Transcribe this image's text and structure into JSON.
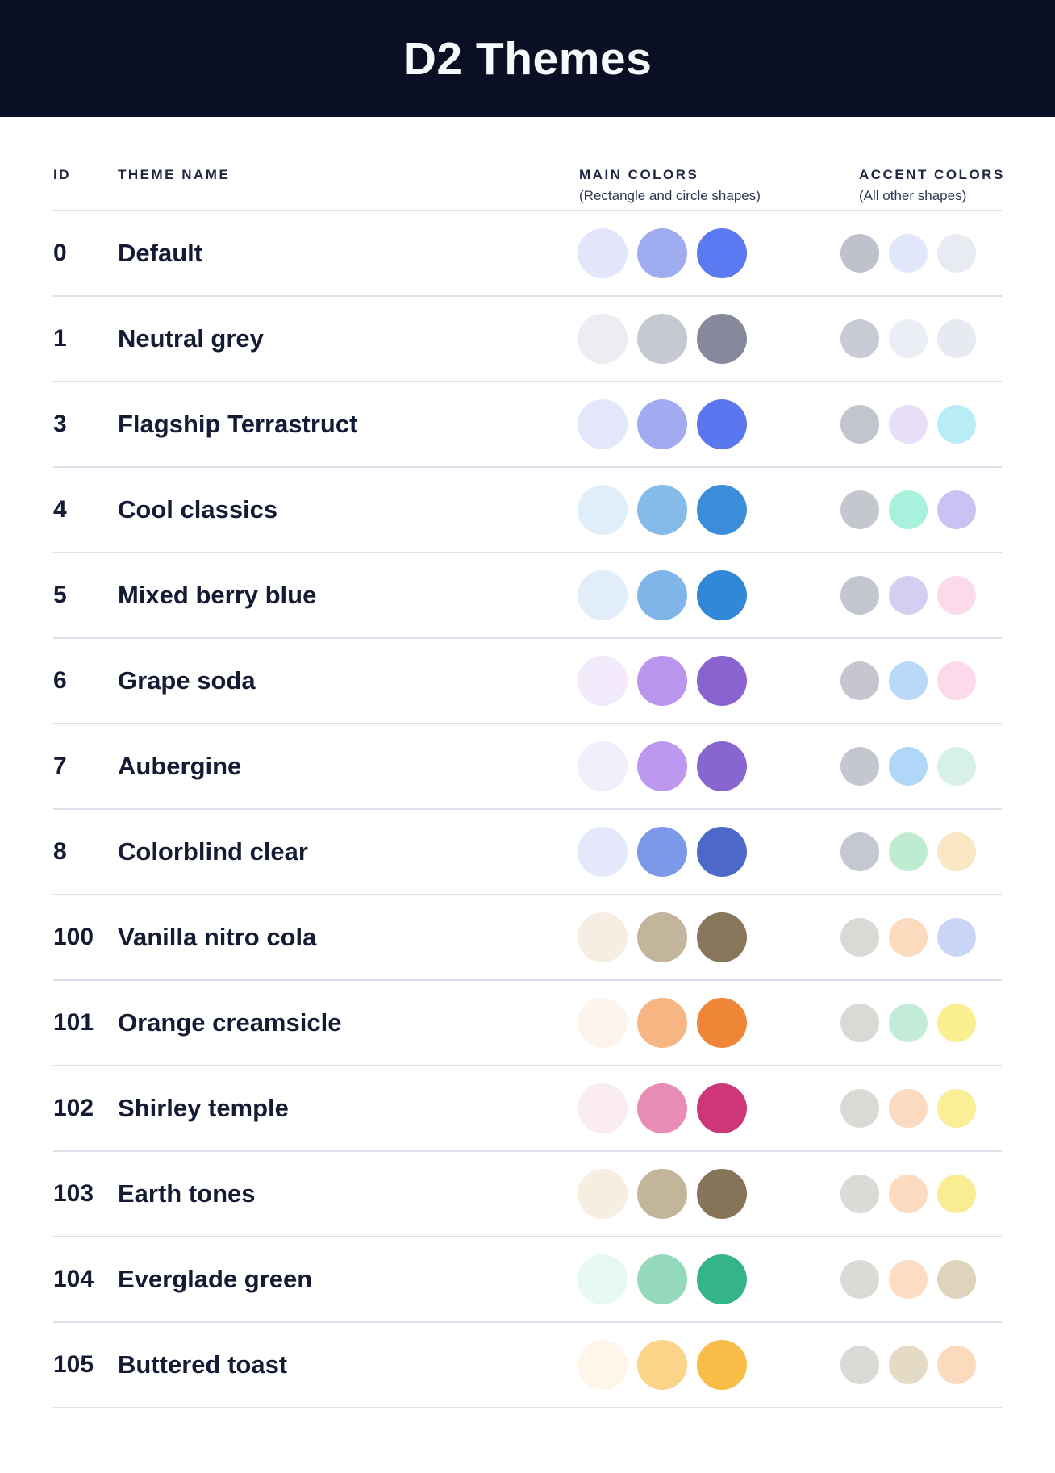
{
  "page": {
    "title": "D2 Themes"
  },
  "colors": {
    "header_bg": "#0A0F23",
    "title_text": "#F7F8FC",
    "body_text": "#151B34",
    "separator": "#DDDEE9"
  },
  "table": {
    "columns": {
      "id_label": "ID",
      "theme_name_label": "THEME NAME",
      "main_colors_label": "MAIN COLORS",
      "main_colors_sub": "(Rectangle and circle shapes)",
      "accent_colors_label": "ACCENT COLORS",
      "accent_colors_sub": "(All other shapes)"
    },
    "rows": [
      {
        "id": "0",
        "name": "Default",
        "main": [
          "#E3E6FB",
          "#A0ACF0",
          "#5B79F0"
        ],
        "accent": [
          "#BFC2CD",
          "#E2E6FA",
          "#E9EBF2"
        ]
      },
      {
        "id": "1",
        "name": "Neutral grey",
        "main": [
          "#EBEDF3",
          "#C6C9D1",
          "#85899B"
        ],
        "accent": [
          "#C8CAD5",
          "#ECEEF6",
          "#E8EAF1"
        ]
      },
      {
        "id": "3",
        "name": "Flagship Terrastruct",
        "main": [
          "#E4E7FA",
          "#A2ABEF",
          "#5B77F0"
        ],
        "accent": [
          "#C2C4CE",
          "#E7DFF8",
          "#B9EDF6"
        ]
      },
      {
        "id": "4",
        "name": "Cool classics",
        "main": [
          "#E0EEF9",
          "#85BBE8",
          "#3B8DD9"
        ],
        "accent": [
          "#C5C7CE",
          "#A8F1DD",
          "#CBC2F4"
        ]
      },
      {
        "id": "5",
        "name": "Mixed berry blue",
        "main": [
          "#E1EEF9",
          "#7FB5E9",
          "#3288D8"
        ],
        "accent": [
          "#C4C6CF",
          "#D6CDF2",
          "#FBDAEC"
        ]
      },
      {
        "id": "6",
        "name": "Grape soda",
        "main": [
          "#F0EAFA",
          "#B995EE",
          "#8963D0"
        ],
        "accent": [
          "#C5C6D0",
          "#BAD8F7",
          "#FCDAEA"
        ]
      },
      {
        "id": "7",
        "name": "Aubergine",
        "main": [
          "#F1EDFA",
          "#BC98EF",
          "#8965CF"
        ],
        "accent": [
          "#C5C7D0",
          "#B0D7F7",
          "#D7F1E9"
        ]
      },
      {
        "id": "8",
        "name": "Colorblind clear",
        "main": [
          "#E4E8FA",
          "#7C98E9",
          "#4C69C9"
        ],
        "accent": [
          "#C6C8D1",
          "#BFECD1",
          "#FAE7C3"
        ]
      },
      {
        "id": "100",
        "name": "Vanilla nitro cola",
        "main": [
          "#F7EEE3",
          "#C3B59B",
          "#877659"
        ],
        "accent": [
          "#DAD9D6",
          "#FBDABE",
          "#C8D5F4"
        ]
      },
      {
        "id": "101",
        "name": "Orange creamsicle",
        "main": [
          "#FDF4ED",
          "#F8B584",
          "#EF8536"
        ],
        "accent": [
          "#DBD9D5",
          "#C2ECD8",
          "#FAEF90"
        ]
      },
      {
        "id": "102",
        "name": "Shirley temple",
        "main": [
          "#FBECF2",
          "#E98CB6",
          "#CE3677"
        ],
        "accent": [
          "#DBD9D5",
          "#FBDABF",
          "#FAEE97"
        ]
      },
      {
        "id": "103",
        "name": "Earth tones",
        "main": [
          "#F7EEE2",
          "#C3B599",
          "#857457"
        ],
        "accent": [
          "#DBDAD6",
          "#FCDBC0",
          "#FAEC93"
        ]
      },
      {
        "id": "104",
        "name": "Everglade green",
        "main": [
          "#E7F9F2",
          "#95D9BC",
          "#35B389"
        ],
        "accent": [
          "#DBDAD7",
          "#FCDCC2",
          "#DFD3BD"
        ]
      },
      {
        "id": "105",
        "name": "Buttered toast",
        "main": [
          "#FEF7E9",
          "#FBD389",
          "#F7BD47"
        ],
        "accent": [
          "#DBDAD7",
          "#E4DAC5",
          "#FCDABE"
        ]
      }
    ]
  }
}
